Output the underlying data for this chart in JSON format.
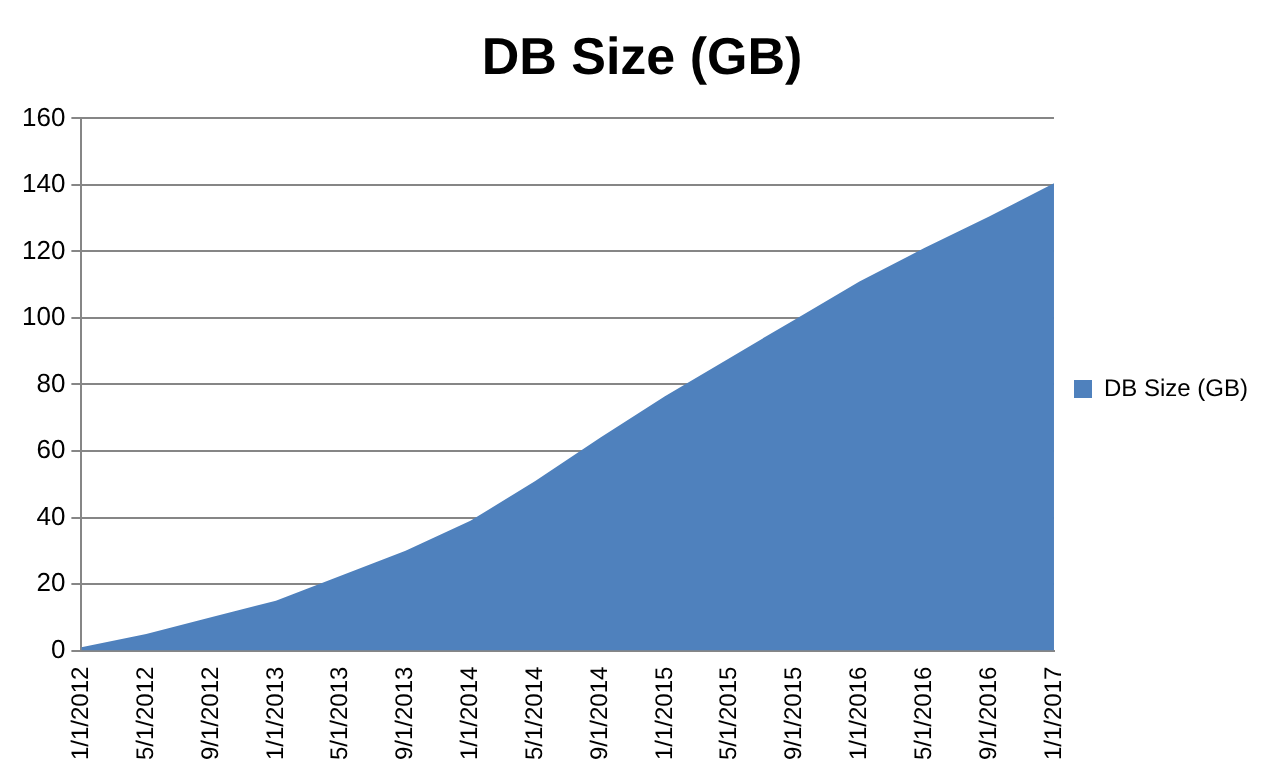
{
  "chart_data": {
    "type": "area",
    "title": "DB Size (GB)",
    "categories": [
      "1/1/2012",
      "5/1/2012",
      "9/1/2012",
      "1/1/2013",
      "5/1/2013",
      "9/1/2013",
      "1/1/2014",
      "5/1/2014",
      "9/1/2014",
      "1/1/2015",
      "5/1/2015",
      "9/1/2015",
      "1/1/2016",
      "5/1/2016",
      "9/1/2016",
      "1/1/2017"
    ],
    "series": [
      {
        "name": "DB Size (GB)",
        "color": "#4f81bd",
        "values": [
          1,
          5,
          10,
          15,
          22.5,
          30,
          39,
          51,
          64,
          76.5,
          88,
          99.5,
          111,
          121,
          130.5,
          140.5
        ]
      }
    ],
    "ylim": [
      0,
      160
    ],
    "yticks": [
      0,
      20,
      40,
      60,
      80,
      100,
      120,
      140,
      160
    ],
    "grid": "y",
    "legend": "right"
  }
}
